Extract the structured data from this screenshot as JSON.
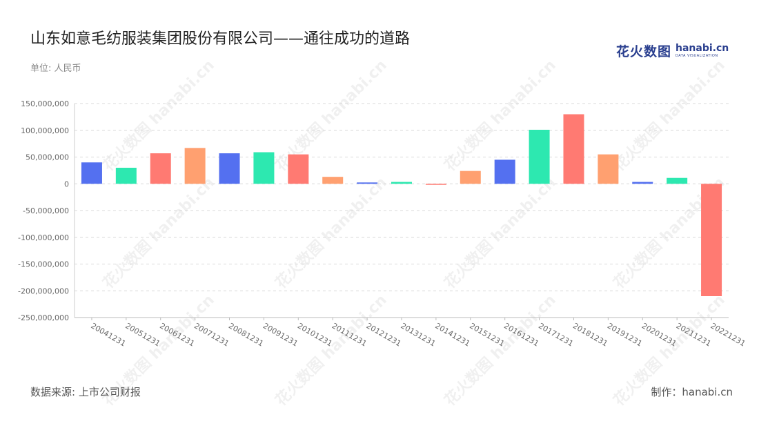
{
  "title": "山东如意毛纺服装集团股份有限公司——通往成功的道路",
  "unit_label": "单位: 人民币",
  "source_label": "数据来源: 上市公司财报",
  "maker_label": "制作：hanabi.cn",
  "logo": {
    "cn": "花火数图",
    "en": "hanabi.cn",
    "tagline": "DATA VISUALIZATION"
  },
  "watermark_text": "花火数图 hanabi.cn",
  "colors": {
    "blue": "#5470f0",
    "green": "#2de8b0",
    "red": "#ff7a72",
    "orange": "#ffa070"
  },
  "chart_data": {
    "type": "bar",
    "categories": [
      "20041231",
      "20051231",
      "20061231",
      "20071231",
      "20081231",
      "20091231",
      "20101231",
      "20111231",
      "20121231",
      "20131231",
      "20141231",
      "20151231",
      "20161231",
      "20171231",
      "20181231",
      "20191231",
      "20201231",
      "20211231",
      "20221231"
    ],
    "values": [
      40000000,
      30000000,
      57000000,
      67000000,
      57000000,
      59000000,
      55000000,
      13000000,
      2500000,
      3500000,
      -1500000,
      24000000,
      45000000,
      101000000,
      130000000,
      55000000,
      3500000,
      11000000,
      -210000000
    ],
    "bar_colors": [
      "#5470f0",
      "#2de8b0",
      "#ff7a72",
      "#ffa070",
      "#5470f0",
      "#2de8b0",
      "#ff7a72",
      "#ffa070",
      "#5470f0",
      "#2de8b0",
      "#ff7a72",
      "#ffa070",
      "#5470f0",
      "#2de8b0",
      "#ff7a72",
      "#ffa070",
      "#5470f0",
      "#2de8b0",
      "#ff7a72"
    ],
    "ylim": [
      -250000000,
      150000000
    ],
    "yticks": [
      150000000,
      100000000,
      50000000,
      0,
      -50000000,
      -100000000,
      -150000000,
      -200000000,
      -250000000
    ],
    "ytick_labels": [
      "150,000,000",
      "100,000,000",
      "50,000,000",
      "0",
      "-50,000,000",
      "-100,000,000",
      "-150,000,000",
      "-200,000,000",
      "-250,000,000"
    ],
    "grid": true,
    "legend": "none"
  }
}
